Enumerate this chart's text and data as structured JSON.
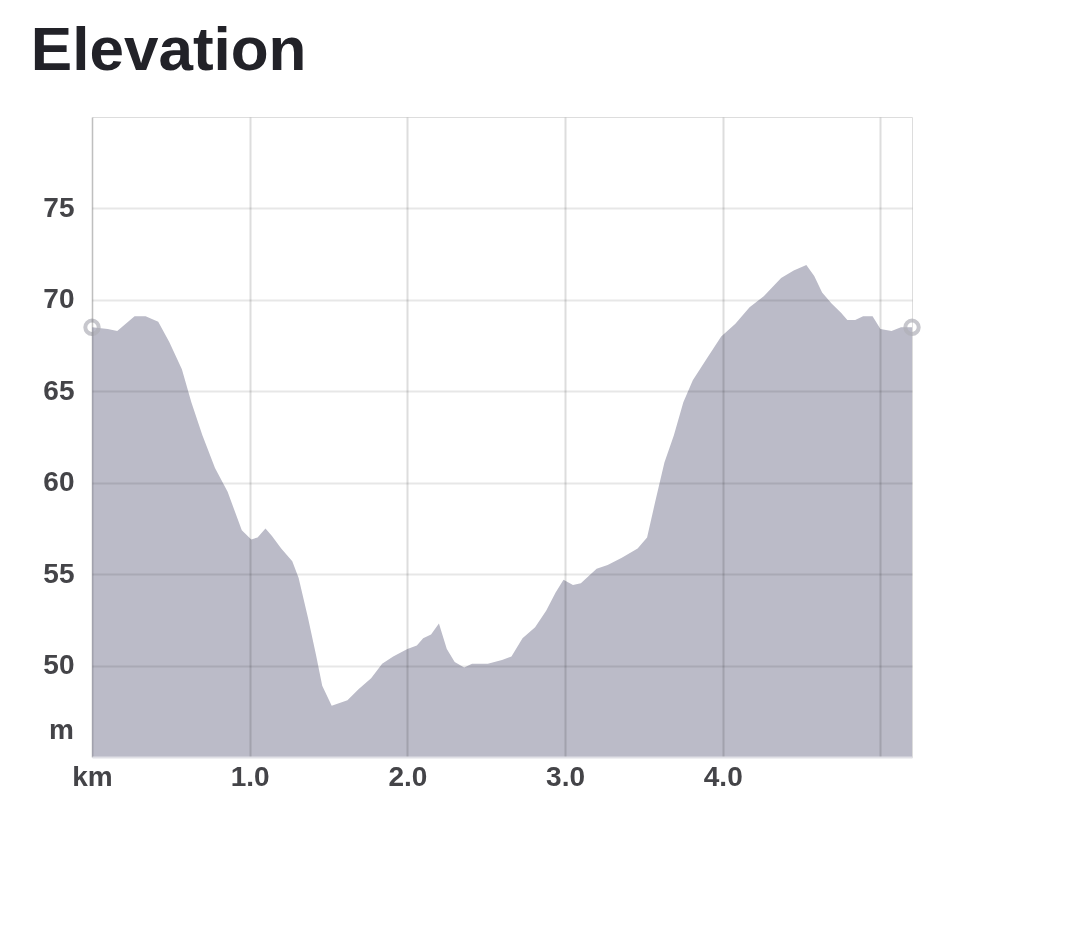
{
  "chart_data": {
    "type": "area",
    "title": "Elevation",
    "ylabel": "m",
    "xlim": [
      0,
      5.2
    ],
    "ylim": [
      45,
      80
    ],
    "xticks": [
      {
        "value": 0,
        "label": "km"
      },
      {
        "value": 1,
        "label": "1.0"
      },
      {
        "value": 2,
        "label": "2.0"
      },
      {
        "value": 3,
        "label": "3.0"
      },
      {
        "value": 4,
        "label": "4.0"
      },
      {
        "value": 5,
        "label": null
      }
    ],
    "yticks": [
      50,
      55,
      60,
      65,
      70,
      75
    ],
    "grid": true,
    "series": [
      {
        "color": "#bbbbc8",
        "x": [
          0,
          0.1,
          0.16,
          0.27,
          0.34,
          0.42,
          0.49,
          0.57,
          0.63,
          0.7,
          0.78,
          0.86,
          0.95,
          1.01,
          1.05,
          1.1,
          1.14,
          1.2,
          1.27,
          1.31,
          1.37,
          1.42,
          1.46,
          1.52,
          1.62,
          1.69,
          1.77,
          1.84,
          1.91,
          2.0,
          2.06,
          2.1,
          2.15,
          2.2,
          2.25,
          2.3,
          2.36,
          2.41,
          2.51,
          2.6,
          2.66,
          2.73,
          2.81,
          2.88,
          2.94,
          2.99,
          3.05,
          3.1,
          3.2,
          3.27,
          3.36,
          3.46,
          3.52,
          3.57,
          3.63,
          3.69,
          3.75,
          3.81,
          3.9,
          3.99,
          4.08,
          4.17,
          4.26,
          4.37,
          4.45,
          4.53,
          4.58,
          4.63,
          4.69,
          4.75,
          4.79,
          4.84,
          4.89,
          4.95,
          5.0,
          5.07,
          5.13,
          5.2
        ],
        "values": [
          68.5,
          68.4,
          68.3,
          69.1,
          69.1,
          68.8,
          67.7,
          66.2,
          64.4,
          62.6,
          60.8,
          59.5,
          57.4,
          56.9,
          57.0,
          57.5,
          57.1,
          56.4,
          55.7,
          54.8,
          52.6,
          50.6,
          48.9,
          47.8,
          48.1,
          48.7,
          49.3,
          50.1,
          50.5,
          50.9,
          51.1,
          51.5,
          51.7,
          52.3,
          50.9,
          50.2,
          49.9,
          50.1,
          50.1,
          50.3,
          50.5,
          51.5,
          52.1,
          53.0,
          54.0,
          54.7,
          54.4,
          54.5,
          55.3,
          55.5,
          55.9,
          56.4,
          57.0,
          58.9,
          61.1,
          62.6,
          64.4,
          65.6,
          66.8,
          68.0,
          68.7,
          69.6,
          70.2,
          71.2,
          71.6,
          71.9,
          71.3,
          70.4,
          69.8,
          69.3,
          68.9,
          68.9,
          69.1,
          69.1,
          68.4,
          68.3,
          68.5,
          68.5
        ]
      },
      {
        "type": "scatter",
        "color": "#b0b0b8",
        "marker": "circle",
        "x": [
          0,
          5.2
        ],
        "values": [
          68.5,
          68.5
        ]
      }
    ]
  }
}
